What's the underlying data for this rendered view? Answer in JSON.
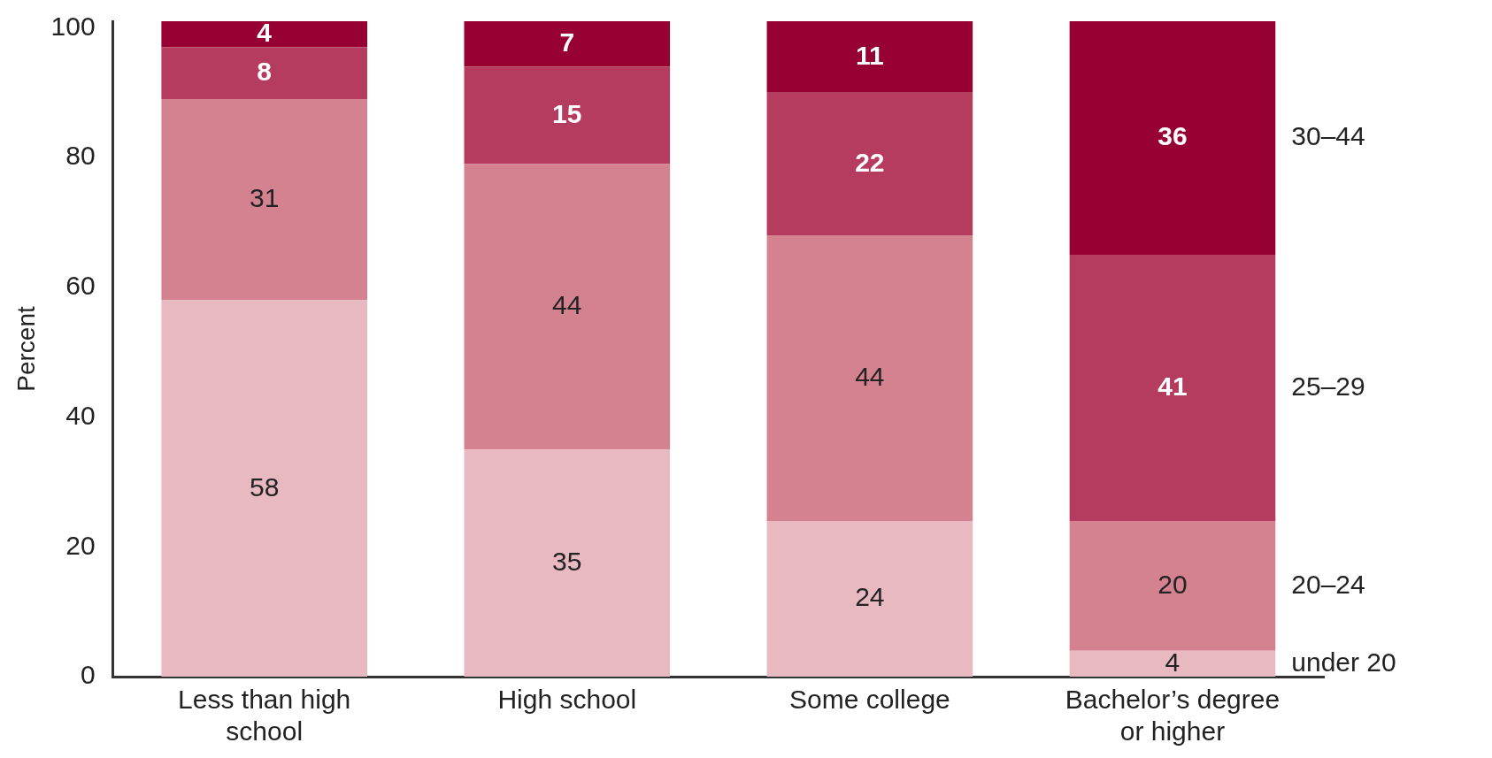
{
  "chart_data": {
    "type": "bar",
    "stacked": true,
    "ylabel": "Percent",
    "categories": [
      "Less than high school",
      "High school",
      "Some college",
      "Bachelor’s degree or higher"
    ],
    "series": [
      {
        "name": "under 20",
        "color": "#e9b9c2",
        "values": [
          58,
          35,
          24,
          4
        ]
      },
      {
        "name": "20–24",
        "color": "#d48290",
        "values": [
          31,
          44,
          44,
          20
        ]
      },
      {
        "name": "25–29",
        "color": "#b53c5e",
        "values": [
          8,
          15,
          22,
          41
        ]
      },
      {
        "name": "30–44",
        "color": "#960032",
        "values": [
          4,
          7,
          11,
          36
        ]
      }
    ],
    "ylim": [
      0,
      101
    ],
    "yticks": [
      0,
      20,
      40,
      60,
      80,
      100
    ],
    "grid": false,
    "legend": false,
    "data_labels": true
  }
}
